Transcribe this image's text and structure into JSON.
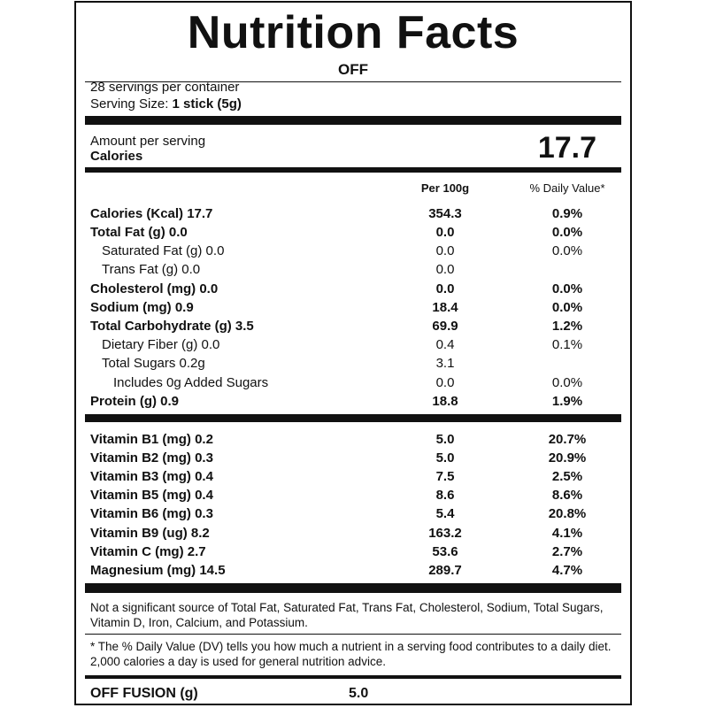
{
  "title": "Nutrition Facts",
  "brand": "OFF",
  "servings_per_container": "28 servings per container",
  "serving_size_label": "Serving Size:",
  "serving_size_value": "1 stick (5g)",
  "amount_per_serving": "Amount per serving",
  "calories_label": "Calories",
  "calories_value": "17.7",
  "col_headers": {
    "per100": "Per 100g",
    "dv": "% Daily Value*"
  },
  "nutrients": [
    {
      "name": "Calories (Kcal) 17.7",
      "per100": "354.3",
      "dv": "0.9%",
      "bold": true,
      "indent": 0
    },
    {
      "name": "Total Fat (g) 0.0",
      "per100": "0.0",
      "dv": "0.0%",
      "bold": true,
      "indent": 0
    },
    {
      "name": "Saturated Fat (g) 0.0",
      "per100": "0.0",
      "dv": "0.0%",
      "bold": false,
      "indent": 1
    },
    {
      "name": "Trans Fat (g) 0.0",
      "per100": "0.0",
      "dv": "",
      "bold": false,
      "indent": 1
    },
    {
      "name": "Cholesterol (mg) 0.0",
      "per100": "0.0",
      "dv": "0.0%",
      "bold": true,
      "indent": 0
    },
    {
      "name": "Sodium (mg) 0.9",
      "per100": "18.4",
      "dv": "0.0%",
      "bold": true,
      "indent": 0
    },
    {
      "name": "Total Carbohydrate (g) 3.5",
      "per100": "69.9",
      "dv": "1.2%",
      "bold": true,
      "indent": 0
    },
    {
      "name": "Dietary Fiber (g) 0.0",
      "per100": "0.4",
      "dv": "0.1%",
      "bold": false,
      "indent": 1
    },
    {
      "name": "Total Sugars 0.2g",
      "per100": "3.1",
      "dv": "",
      "bold": false,
      "indent": 1
    },
    {
      "name": "Includes 0g Added Sugars",
      "per100": "0.0",
      "dv": "0.0%",
      "bold": false,
      "indent": 2
    },
    {
      "name": "Protein (g) 0.9",
      "per100": "18.8",
      "dv": "1.9%",
      "bold": true,
      "indent": 0
    }
  ],
  "vitamins": [
    {
      "name": "Vitamin B1 (mg) 0.2",
      "per100": "5.0",
      "dv": "20.7%"
    },
    {
      "name": "Vitamin B2 (mg) 0.3",
      "per100": "5.0",
      "dv": "20.9%"
    },
    {
      "name": "Vitamin B3 (mg) 0.4",
      "per100": "7.5",
      "dv": "2.5%"
    },
    {
      "name": "Vitamin B5 (mg) 0.4",
      "per100": "8.6",
      "dv": "8.6%"
    },
    {
      "name": "Vitamin B6 (mg) 0.3",
      "per100": "5.4",
      "dv": "20.8%"
    },
    {
      "name": "Vitamin B9 (ug) 8.2",
      "per100": "163.2",
      "dv": "4.1%"
    },
    {
      "name": "Vitamin C (mg) 2.7",
      "per100": "53.6",
      "dv": "2.7%"
    },
    {
      "name": "Magnesium (mg) 14.5",
      "per100": "289.7",
      "dv": "4.7%"
    }
  ],
  "not_significant": "Not a significant source of Total Fat, Saturated Fat, Trans Fat, Cholesterol, Sodium, Total Sugars, Vitamin D, Iron, Calcium, and Potassium.",
  "dv_footnote": "* The % Daily Value (DV) tells you how much a nutrient in a serving food contributes to a daily diet. 2,000 calories a day is used for general nutrition advice.",
  "fusion_label": "OFF FUSION (g)",
  "fusion_value": "5.0"
}
